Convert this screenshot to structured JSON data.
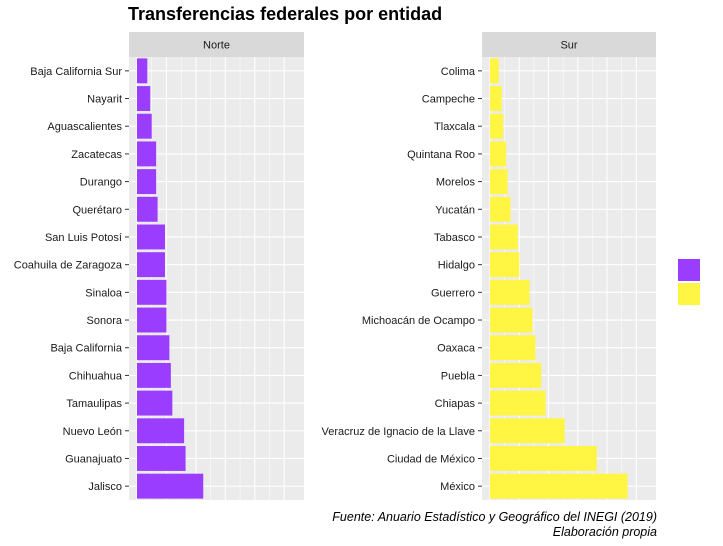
{
  "chart_data": {
    "type": "bar",
    "orientation": "horizontal",
    "title": "Transferencias federales por entidad",
    "caption": [
      "Fuente: Anuario Estadístico y Geográfico del INEGI (2019)",
      "Elaboración propia"
    ],
    "xlabel": "",
    "ylabel": "",
    "xlim": [
      0,
      10.8
    ],
    "grid": true,
    "legend": {
      "position": "right",
      "labels": [
        "",
        ""
      ]
    },
    "colors": {
      "Norte": "#9B3DFF",
      "Sur": "#FFF542"
    },
    "facets": [
      {
        "name": "Norte",
        "categories": [
          "Baja California Sur",
          "Nayarit",
          "Aguascalientes",
          "Zacatecas",
          "Durango",
          "Querétaro",
          "San Luis Potosí",
          "Coahuila de Zaragoza",
          "Sinaloa",
          "Sonora",
          "Baja California",
          "Chihuahua",
          "Tamaulipas",
          "Nuevo León",
          "Guanajuato",
          "Jalisco"
        ],
        "values": [
          0.7,
          0.9,
          1.0,
          1.3,
          1.3,
          1.4,
          1.9,
          1.9,
          2.0,
          2.0,
          2.2,
          2.3,
          2.4,
          3.2,
          3.3,
          4.5
        ]
      },
      {
        "name": "Sur",
        "categories": [
          "Colima",
          "Campeche",
          "Tlaxcala",
          "Quintana  Roo",
          "Morelos",
          "Yucatán",
          "Tabasco",
          "Hidalgo",
          "Guerrero",
          "Michoacán de Ocampo",
          "Oaxaca",
          "Puebla",
          "Chiapas",
          "Veracruz de Ignacio de la Llave",
          "Ciudad de México",
          "México"
        ],
        "values": [
          0.6,
          0.8,
          0.9,
          1.1,
          1.2,
          1.4,
          1.9,
          2.0,
          2.7,
          2.9,
          3.1,
          3.5,
          3.8,
          5.1,
          7.3,
          9.4
        ]
      }
    ]
  }
}
